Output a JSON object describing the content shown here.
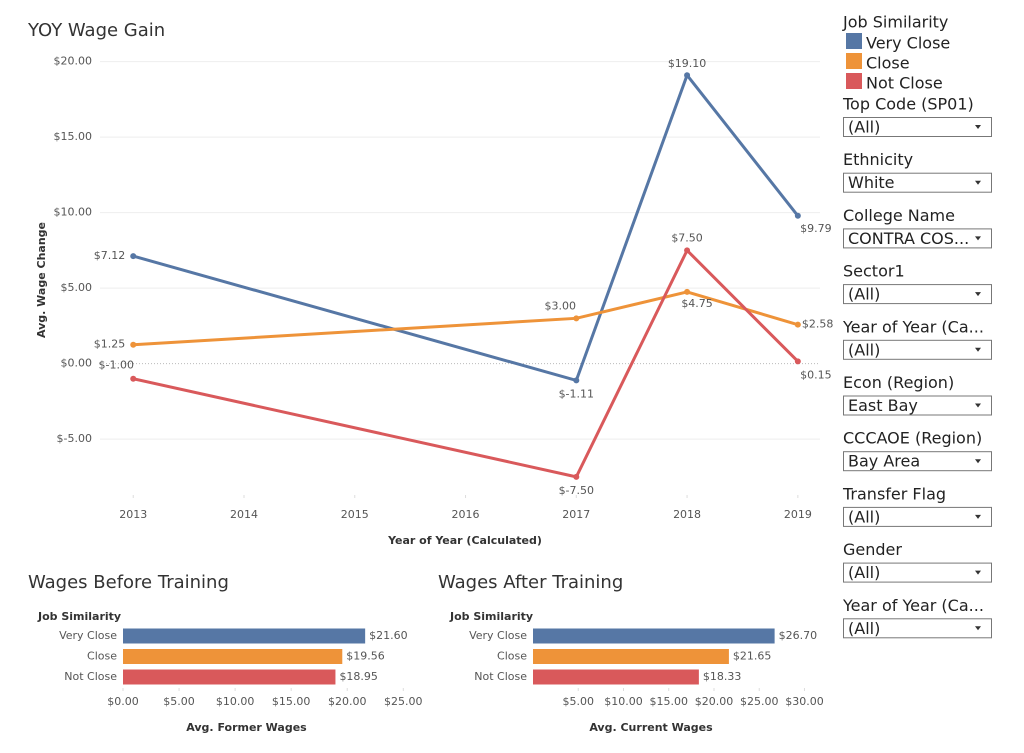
{
  "chart_data": [
    {
      "type": "line",
      "title": "YOY Wage Gain",
      "x_label": "Year of Year (Calculated)",
      "y_label": "Avg. Wage Change",
      "legend_title": "Job Similarity",
      "xlim": [
        2012.7,
        2019.2
      ],
      "xticks": [
        2013,
        2014,
        2015,
        2016,
        2017,
        2018,
        2019
      ],
      "ylim": [
        -8.7,
        21.1
      ],
      "yticks": [
        {
          "value": -5,
          "label": "$-5.00"
        },
        {
          "value": 0,
          "label": "$0.00"
        },
        {
          "value": 5,
          "label": "$5.00"
        },
        {
          "value": 10,
          "label": "$10.00"
        },
        {
          "value": 15,
          "label": "$15.00"
        },
        {
          "value": 20,
          "label": "$20.00"
        }
      ],
      "grid": true,
      "series": [
        {
          "name": "Very Close",
          "color": "#5677a5",
          "x": [
            2013,
            2017,
            2018,
            2019
          ],
          "values": [
            7.12,
            -1.11,
            19.1,
            9.79
          ],
          "value_labels": [
            "$7.12",
            "$-1.11",
            "$19.10",
            "$9.79"
          ]
        },
        {
          "name": "Close",
          "color": "#ee9339",
          "x": [
            2013,
            2017,
            2018,
            2019
          ],
          "values": [
            1.25,
            3.0,
            4.75,
            2.58
          ],
          "value_labels": [
            "$1.25",
            "$3.00",
            "$4.75",
            "$2.58"
          ]
        },
        {
          "name": "Not Close",
          "color": "#d9595b",
          "x": [
            2013,
            2017,
            2018,
            2019
          ],
          "values": [
            -1.0,
            -7.5,
            7.5,
            0.15
          ],
          "value_labels": [
            "$-1.00",
            "$-7.50",
            "$7.50",
            "$0.15"
          ]
        }
      ]
    },
    {
      "type": "hbar",
      "title": "Wages Before Training",
      "category_label": "Job Similarity",
      "x_label": "Avg. Former Wages",
      "categories": [
        "Very Close",
        "Close",
        "Not Close"
      ],
      "values": [
        21.6,
        19.56,
        18.95
      ],
      "value_labels": [
        "$21.60",
        "$19.56",
        "$18.95"
      ],
      "colors": [
        "#5677a5",
        "#ee9339",
        "#d9595b"
      ],
      "xlim": [
        0,
        25.6
      ],
      "xticks": [
        {
          "value": 0,
          "label": "$0.00"
        },
        {
          "value": 5,
          "label": "$5.00"
        },
        {
          "value": 10,
          "label": "$10.00"
        },
        {
          "value": 15,
          "label": "$15.00"
        },
        {
          "value": 20,
          "label": "$20.00"
        },
        {
          "value": 25,
          "label": "$25.00"
        }
      ]
    },
    {
      "type": "hbar",
      "title": "Wages After Training",
      "category_label": "Job Similarity",
      "x_label": "Avg. Current Wages",
      "categories": [
        "Very Close",
        "Close",
        "Not Close"
      ],
      "values": [
        26.7,
        21.65,
        18.33
      ],
      "value_labels": [
        "$26.70",
        "$21.65",
        "$18.33"
      ],
      "colors": [
        "#5677a5",
        "#ee9339",
        "#d9595b"
      ],
      "xlim": [
        0,
        30.5
      ],
      "xticks": [
        {
          "value": 5,
          "label": "$5.00"
        },
        {
          "value": 10,
          "label": "$10.00"
        },
        {
          "value": 15,
          "label": "$15.00"
        },
        {
          "value": 20,
          "label": "$20.00"
        },
        {
          "value": 25,
          "label": "$25.00"
        },
        {
          "value": 30,
          "label": "$30.00"
        }
      ]
    }
  ],
  "filters": [
    {
      "label": "Top Code (SP01)",
      "value": "(All)"
    },
    {
      "label": "Ethnicity",
      "value": "White"
    },
    {
      "label": "College Name",
      "value": "CONTRA COS..."
    },
    {
      "label": "Sector1",
      "value": "(All)"
    },
    {
      "label": "Year of Year (Ca...",
      "value": "(All)"
    },
    {
      "label": "Econ (Region)",
      "value": "East Bay"
    },
    {
      "label": "CCCAOE (Region)",
      "value": "Bay Area"
    },
    {
      "label": "Transfer Flag",
      "value": "(All)"
    },
    {
      "label": "Gender",
      "value": "(All)"
    },
    {
      "label": "Year of Year (Ca...",
      "value": "(All)"
    }
  ]
}
